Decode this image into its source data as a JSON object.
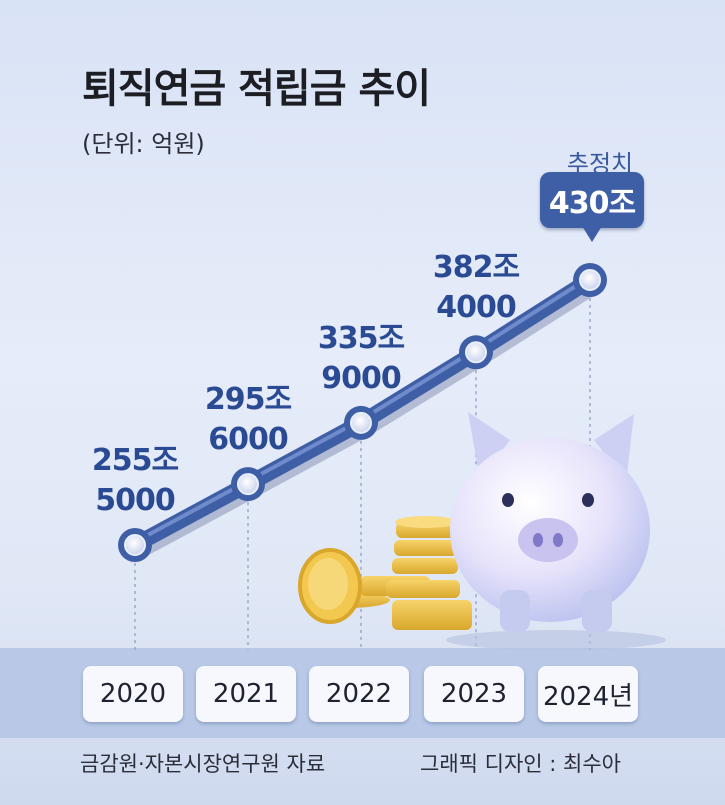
{
  "title": "퇴직연금 적립금 추이",
  "unit_label": "(단위: 억원)",
  "estimate_label": "추정치",
  "estimate_value_label": "430조",
  "source": "금감원·자본시장연구원 자료",
  "credit": "그래픽 디자인 : 최수아",
  "colors": {
    "line": "#3e5ea6",
    "label": "#2a4a93",
    "band": "#b8c8e6"
  },
  "illustration": [
    "piggy-bank",
    "gold-coins"
  ],
  "chart_data": {
    "type": "line",
    "title": "퇴직연금 적립금 추이",
    "unit": "억원",
    "categories": [
      "2020",
      "2021",
      "2022",
      "2023",
      "2024년"
    ],
    "values": [
      2555000,
      2956000,
      3359000,
      3824000,
      4300000
    ],
    "data_labels": [
      [
        "255조",
        "5000"
      ],
      [
        "295조",
        "6000"
      ],
      [
        "335조",
        "9000"
      ],
      [
        "382조",
        "4000"
      ],
      [
        "430조"
      ]
    ],
    "estimated": [
      false,
      false,
      false,
      false,
      true
    ],
    "grid": false,
    "legend": "none"
  }
}
